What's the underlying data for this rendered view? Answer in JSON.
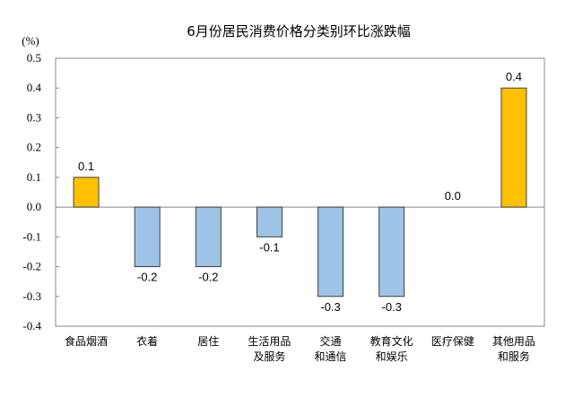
{
  "chart_data": {
    "type": "bar",
    "title": "6月份居民消费价格分类别环比涨跌幅",
    "ylabel": "(%)",
    "xlabel": "",
    "ylim": [
      -0.4,
      0.5
    ],
    "yticks": [
      "0.5",
      "0.4",
      "0.3",
      "0.2",
      "0.1",
      "0.0",
      "-0.1",
      "-0.2",
      "-0.3",
      "-0.4"
    ],
    "categories": [
      [
        "食品烟酒"
      ],
      [
        "衣着"
      ],
      [
        "居住"
      ],
      [
        "生活用品",
        "及服务"
      ],
      [
        "交通",
        "和通信"
      ],
      [
        "教育文化",
        "和娱乐"
      ],
      [
        "医疗保健"
      ],
      [
        "其他用品",
        "和服务"
      ]
    ],
    "values": [
      0.1,
      -0.2,
      -0.2,
      -0.1,
      -0.3,
      -0.3,
      0.0,
      0.4
    ],
    "data_labels": [
      "0.1",
      "-0.2",
      "-0.2",
      "-0.1",
      "-0.3",
      "-0.3",
      "0.0",
      "0.4"
    ],
    "colors": {
      "positive": "#FFC000",
      "negative": "#9DC3E6",
      "outline": "#404040"
    },
    "grid": false,
    "legend": "none"
  }
}
